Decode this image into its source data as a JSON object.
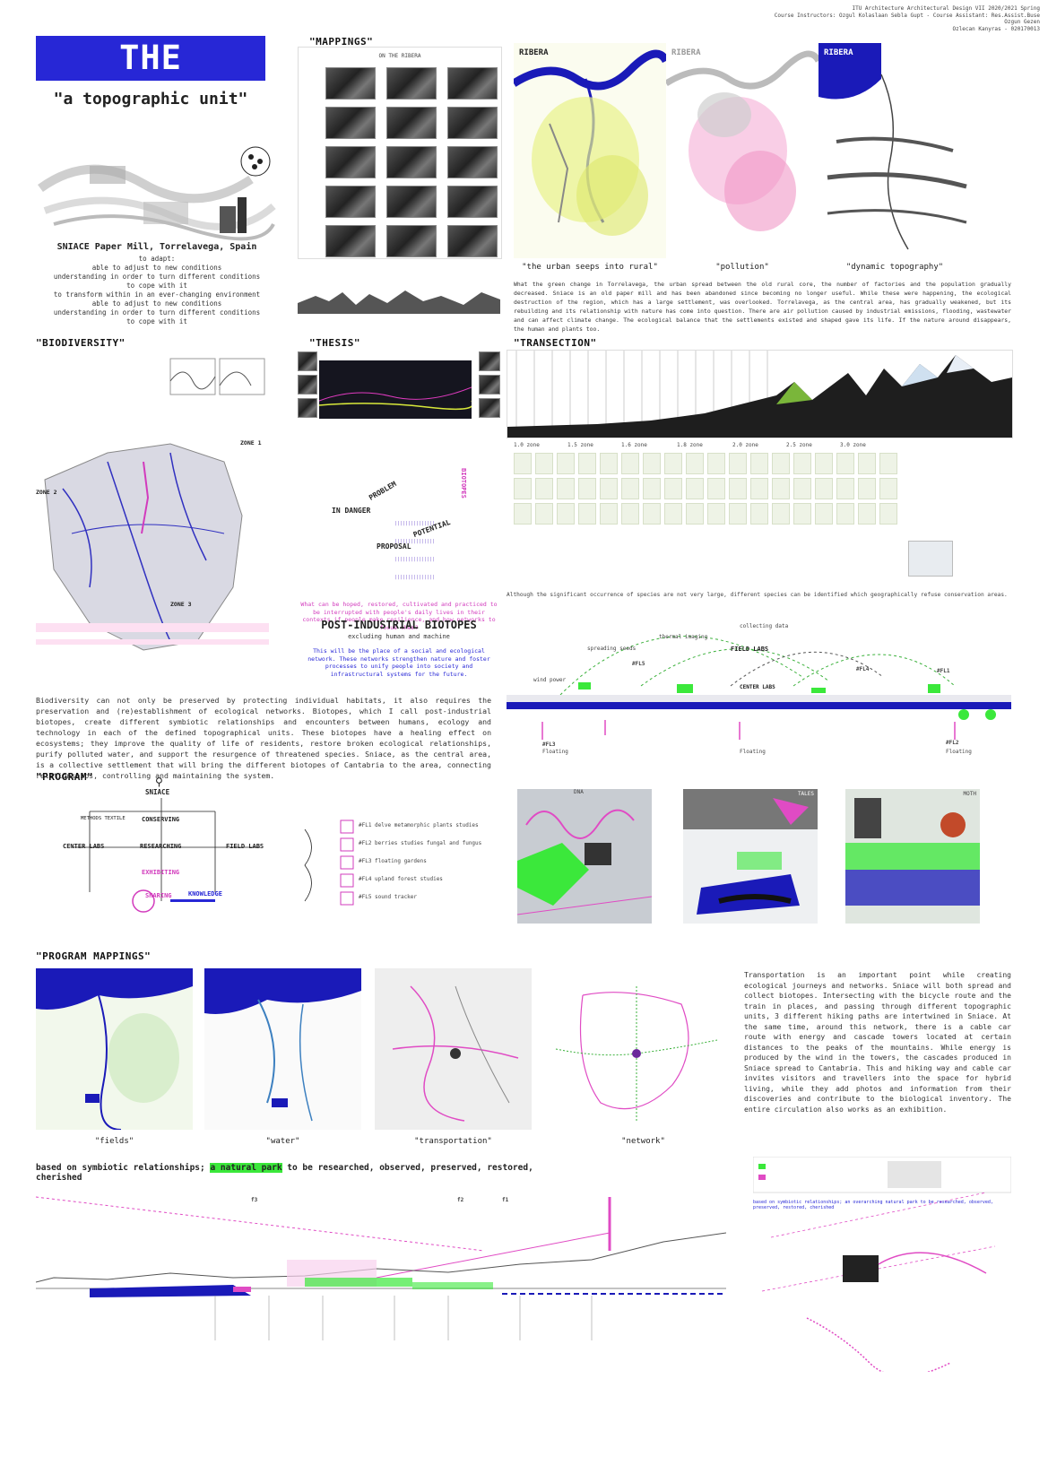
{
  "header": {
    "title": "THE BIOTOPE",
    "subtitle": "\"a topographic unit\"",
    "course_line_1": "ITU Architecture Architectural Design VII  2020/2021 Spring",
    "course_line_2": "Course Instructors: Ozgul Kolaslaan Sebla Gupt - Course Assistant: Res.Assist.Buse Ozgun Gezen",
    "course_line_3": "Ozlecan Kanyras - 020170013"
  },
  "intro": {
    "heading": "SNIACE Paper Mill, Torrelavega, Spain",
    "lines": [
      "to adapt:",
      "able to adjust to new conditions",
      "understanding in order to turn different conditions",
      "to cope with it",
      "to transform within in an ever-changing environment",
      "able to adjust to new conditions",
      "understanding in order to turn different conditions",
      "to cope with it"
    ]
  },
  "mappings": {
    "label": "\"MAPPINGS\"",
    "sublabel": "ON THE RIBERA"
  },
  "ribera": {
    "panel_labels": [
      "RIBERA",
      "RIBERA",
      "RIBERA"
    ],
    "captions": [
      "\"the urban seeps into rural\"",
      "\"pollution\"",
      "\"dynamic topography\""
    ],
    "text": "What the green change in Torrelavega, the urban spread between the old rural core, the number of factories and the population gradually decreased. Sniace is an old paper mill and has been abandoned since becoming no longer useful. While these were happening, the ecological destruction of the region, which has a large settlement, was overlooked. Torrelavega, as the central area, has gradually weakened, but its rebuilding and its relationship with nature has come into question. There are air pollution caused by industrial emissions, flooding, wastewater and can affect climate change. The ecological balance that the settlements existed and shaped gave its life. If the nature around disappears, the human and plants too."
  },
  "biodiversity": {
    "label": "\"BIODIVERSITY\"",
    "zones": [
      "ZONE 1",
      "ZONE 2",
      "ZONE 3"
    ],
    "text": "Biodiversity can not only be preserved by protecting individual habitats, it also requires the preservation and (re)establishment of ecological networks. Biotopes, which I call post-industrial biotopes, create different symbiotic relationships and encounters between humans, ecology and technology in each of the defined topographical units. These biotopes have a healing effect on ecosystems; they improve the quality of life of residents, restore broken ecological relationships, purify polluted water, and support the resurgence of threatened species. Sniace, as the central area, is a collective settlement that will bring the different biotopes of Cantabria to the area, connecting relationships, controlling and maintaining the system."
  },
  "thesis": {
    "label": "\"THESIS\"",
    "words": [
      "PROBLEM",
      "IN DANGER",
      "POTENTIAL",
      "PROPOSAL",
      "BIOTOPES"
    ],
    "heading": "POST-INDUSTRIAL BIOTOPES",
    "subheading": "excluding human and machine",
    "pink_note": "What can be hoped, restored, cultivated and practiced to be interrupted with people's daily lives in their contexts if people make resilience, and how networks to focus them?",
    "blue_note": "This will be the place of a social and ecological network. These networks strengthen nature and foster processes to unify people into society and infrastructural systems for the future."
  },
  "transection": {
    "label": "\"TRANSECTION\"",
    "zone_labels": [
      "1.0 zone",
      "1.5 zone",
      "1.6 zone",
      "1.8 zone",
      "2.0 zone",
      "2.5 zone",
      "3.0 zone"
    ],
    "note": "Although the significant occurrence of species are not very large, different species can be identified which geographically refuse conservation areas."
  },
  "diagram": {
    "labels": [
      "collecting data",
      "thermal imaging",
      "spreading seeds",
      "FIELD LABS",
      "CENTER LABS",
      "#FL4",
      "#FL1",
      "#FL5",
      "#FL3",
      "#FL2",
      "wind power",
      "Floating",
      "Floating",
      "Floating"
    ]
  },
  "program": {
    "label": "\"PROGRAM\"",
    "nodes": [
      "SNIACE",
      "CONSERVING",
      "RESEARCHING",
      "EXHIBITING",
      "SHARING",
      "KNOWLEDGE",
      "CENTER LABS",
      "FIELD LABS",
      "METHODS TEXTILE"
    ],
    "items": [
      "#FL1  delve metamorphic plants studies",
      "#FL2  berries studies fungal and fungus",
      "#FL3  floating gardens",
      "#FL4  upland forest studies",
      "#FL5  sound tracker"
    ],
    "image_labels": [
      "DNA",
      "TALES",
      "MOTH"
    ]
  },
  "program_mappings": {
    "label": "\"PROGRAM MAPPINGS\"",
    "captions": [
      "\"fields\"",
      "\"water\"",
      "\"transportation\"",
      "\"network\""
    ],
    "text": "Transportation is an important point while creating ecological journeys and networks. Sniace will both spread and collect biotopes. Intersecting with the bicycle route and the train in places, and passing through different topographic units, 3 different hiking paths are intertwined in Sniace. At the same time, around this network, there is a cable car route with energy and cascade towers located at certain distances to the peaks of the mountains. While energy is produced by the wind in the towers, the cascades produced in Sniace spread to Cantabria. This and hiking way and cable car invites visitors and travellers into the space for hybrid living, while they add photos and information from their discoveries and contribute to the biological inventory. The entire circulation also works as an exhibition."
  },
  "section": {
    "statement_pre": "based on symbiotic relationships; ",
    "statement_highlight": "a natural park",
    "statement_post": " to be researched, observed, preserved, restored, cherished",
    "labels": [
      "f3",
      "f2",
      "f1"
    ],
    "side_caption": "based on symbiotic relationships; an overarching natural park to be researched, observed, preserved, restored, cherished"
  },
  "colors": {
    "title_blue": "#2727d6",
    "pink": "#e04bc4",
    "green": "#3be83b",
    "dark": "#111111"
  }
}
